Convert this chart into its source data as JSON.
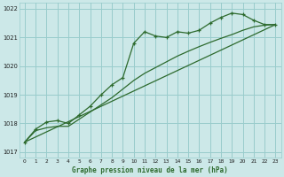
{
  "title": "Graphe pression niveau de la mer (hPa)",
  "bg_color": "#cce8e8",
  "grid_color": "#99cccc",
  "line_color": "#2d6a2d",
  "xlim": [
    -0.5,
    23.5
  ],
  "ylim": [
    1016.8,
    1022.2
  ],
  "xticks": [
    0,
    1,
    2,
    3,
    4,
    5,
    6,
    7,
    8,
    9,
    10,
    11,
    12,
    13,
    14,
    15,
    16,
    17,
    18,
    19,
    20,
    21,
    22,
    23
  ],
  "yticks": [
    1017,
    1018,
    1019,
    1020,
    1021,
    1022
  ],
  "series1_marked": {
    "x": [
      0,
      1,
      2,
      3,
      4,
      5,
      6,
      7,
      8,
      9,
      10,
      11,
      12,
      13,
      14,
      15,
      16,
      17,
      18,
      19,
      20,
      21,
      22,
      23
    ],
    "y": [
      1017.35,
      1017.8,
      1018.05,
      1018.1,
      1018.0,
      1018.3,
      1018.6,
      1019.0,
      1019.35,
      1019.6,
      1020.8,
      1021.2,
      1021.05,
      1021.0,
      1021.2,
      1021.15,
      1021.25,
      1021.5,
      1021.7,
      1021.85,
      1021.8,
      1021.6,
      1021.45,
      1021.45
    ]
  },
  "series2_smooth": {
    "x": [
      0,
      1,
      2,
      3,
      4,
      5,
      6,
      7,
      8,
      9,
      10,
      11,
      12,
      13,
      14,
      15,
      16,
      17,
      18,
      19,
      20,
      21,
      22,
      23
    ],
    "y": [
      1017.35,
      1017.75,
      1017.85,
      1017.9,
      1017.9,
      1018.15,
      1018.4,
      1018.65,
      1018.9,
      1019.2,
      1019.5,
      1019.75,
      1019.95,
      1020.15,
      1020.35,
      1020.52,
      1020.68,
      1020.83,
      1020.97,
      1021.1,
      1021.25,
      1021.37,
      1021.43,
      1021.45
    ]
  },
  "series3_diagonal": {
    "x": [
      0,
      23
    ],
    "y": [
      1017.35,
      1021.45
    ]
  }
}
